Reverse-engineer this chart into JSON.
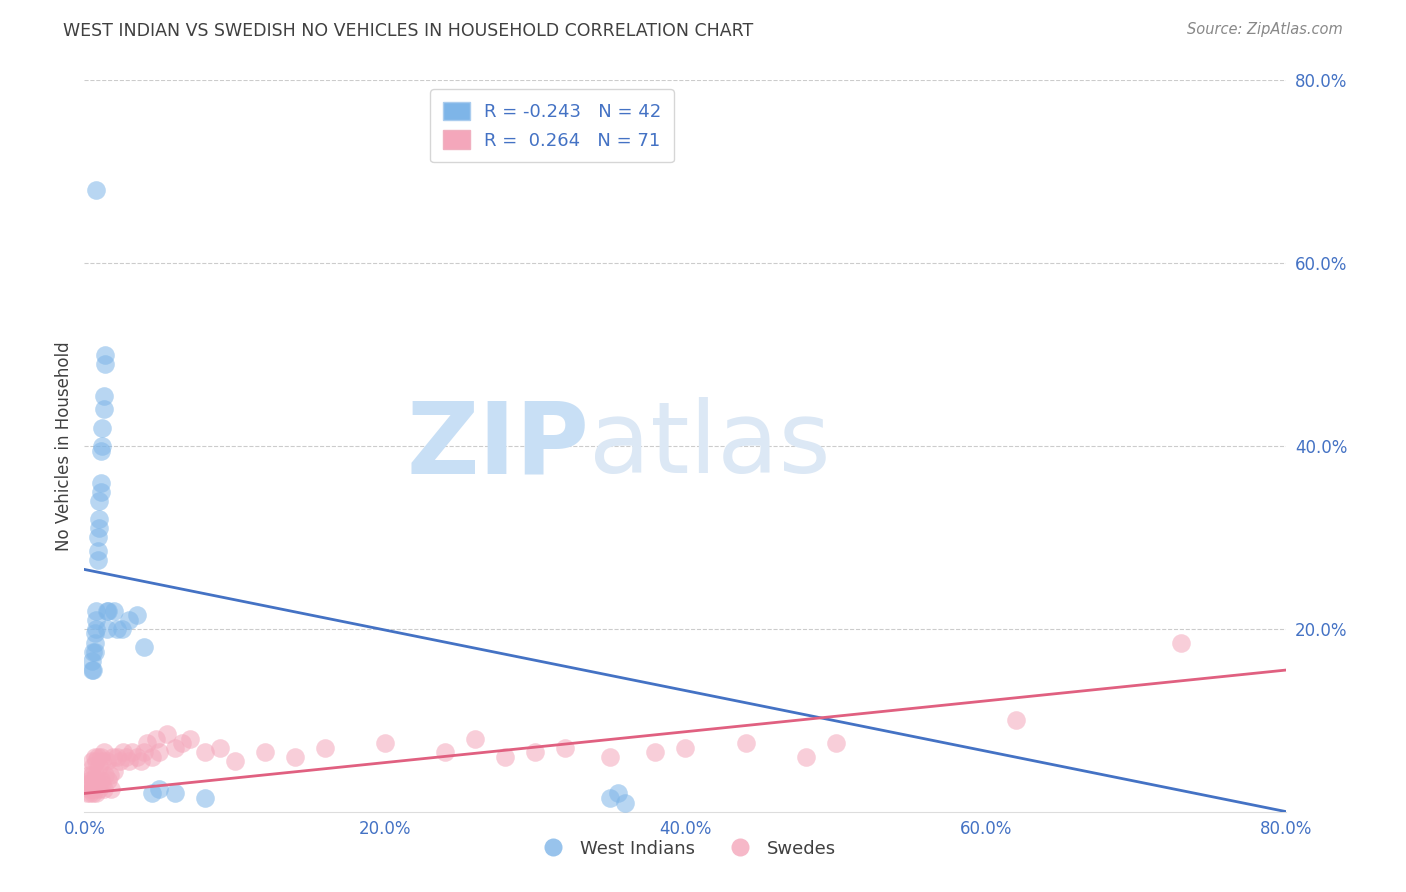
{
  "title": "WEST INDIAN VS SWEDISH NO VEHICLES IN HOUSEHOLD CORRELATION CHART",
  "source": "Source: ZipAtlas.com",
  "ylabel": "No Vehicles in Household",
  "xlim": [
    0.0,
    0.8
  ],
  "ylim": [
    0.0,
    0.8
  ],
  "xtick_labels": [
    "0.0%",
    "20.0%",
    "40.0%",
    "60.0%",
    "80.0%"
  ],
  "xtick_vals": [
    0.0,
    0.2,
    0.4,
    0.6,
    0.8
  ],
  "ytick_labels_right": [
    "80.0%",
    "60.0%",
    "40.0%",
    "20.0%"
  ],
  "ytick_vals_right": [
    0.8,
    0.6,
    0.4,
    0.2
  ],
  "grid_color": "#cccccc",
  "watermark_ZIP": "ZIP",
  "watermark_atlas": "atlas",
  "legend_R_blue": "-0.243",
  "legend_N_blue": "42",
  "legend_R_pink": " 0.264",
  "legend_N_pink": "71",
  "blue_color": "#7eb5e8",
  "pink_color": "#f4a7bb",
  "blue_line_color": "#4472c4",
  "pink_line_color": "#e06080",
  "title_color": "#404040",
  "axis_label_color": "#404040",
  "tick_color": "#4472c4",
  "source_color": "#888888",
  "background_color": "#ffffff",
  "blue_line_x0": 0.0,
  "blue_line_y0": 0.265,
  "blue_line_x1": 0.8,
  "blue_line_y1": 0.0,
  "pink_line_x0": 0.0,
  "pink_line_y0": 0.02,
  "pink_line_x1": 0.8,
  "pink_line_y1": 0.155,
  "west_indian_x": [
    0.005,
    0.005,
    0.006,
    0.006,
    0.007,
    0.007,
    0.007,
    0.008,
    0.008,
    0.008,
    0.009,
    0.009,
    0.009,
    0.01,
    0.01,
    0.01,
    0.011,
    0.011,
    0.011,
    0.012,
    0.012,
    0.013,
    0.013,
    0.014,
    0.014,
    0.015,
    0.015,
    0.016,
    0.02,
    0.022,
    0.025,
    0.03,
    0.035,
    0.04,
    0.045,
    0.05,
    0.06,
    0.08,
    0.35,
    0.355,
    0.36,
    0.008
  ],
  "west_indian_y": [
    0.155,
    0.165,
    0.155,
    0.175,
    0.175,
    0.185,
    0.195,
    0.2,
    0.21,
    0.22,
    0.275,
    0.285,
    0.3,
    0.31,
    0.32,
    0.34,
    0.35,
    0.36,
    0.395,
    0.4,
    0.42,
    0.44,
    0.455,
    0.49,
    0.5,
    0.2,
    0.22,
    0.22,
    0.22,
    0.2,
    0.2,
    0.21,
    0.215,
    0.18,
    0.02,
    0.025,
    0.02,
    0.015,
    0.015,
    0.02,
    0.01,
    0.68
  ],
  "swedish_x": [
    0.002,
    0.002,
    0.003,
    0.003,
    0.004,
    0.004,
    0.005,
    0.005,
    0.005,
    0.006,
    0.006,
    0.006,
    0.007,
    0.007,
    0.008,
    0.008,
    0.008,
    0.009,
    0.009,
    0.01,
    0.01,
    0.011,
    0.011,
    0.012,
    0.012,
    0.013,
    0.013,
    0.014,
    0.015,
    0.016,
    0.017,
    0.018,
    0.019,
    0.02,
    0.022,
    0.024,
    0.026,
    0.028,
    0.03,
    0.032,
    0.035,
    0.038,
    0.04,
    0.042,
    0.045,
    0.048,
    0.05,
    0.055,
    0.06,
    0.065,
    0.07,
    0.08,
    0.09,
    0.1,
    0.12,
    0.14,
    0.16,
    0.2,
    0.24,
    0.26,
    0.28,
    0.3,
    0.32,
    0.35,
    0.38,
    0.4,
    0.44,
    0.48,
    0.5,
    0.62,
    0.73
  ],
  "swedish_y": [
    0.02,
    0.03,
    0.025,
    0.04,
    0.02,
    0.035,
    0.025,
    0.04,
    0.055,
    0.02,
    0.035,
    0.05,
    0.025,
    0.06,
    0.02,
    0.04,
    0.055,
    0.03,
    0.06,
    0.025,
    0.05,
    0.035,
    0.06,
    0.03,
    0.055,
    0.025,
    0.065,
    0.04,
    0.055,
    0.035,
    0.04,
    0.025,
    0.06,
    0.045,
    0.06,
    0.055,
    0.065,
    0.06,
    0.055,
    0.065,
    0.06,
    0.055,
    0.065,
    0.075,
    0.06,
    0.08,
    0.065,
    0.085,
    0.07,
    0.075,
    0.08,
    0.065,
    0.07,
    0.055,
    0.065,
    0.06,
    0.07,
    0.075,
    0.065,
    0.08,
    0.06,
    0.065,
    0.07,
    0.06,
    0.065,
    0.07,
    0.075,
    0.06,
    0.075,
    0.1,
    0.185
  ]
}
